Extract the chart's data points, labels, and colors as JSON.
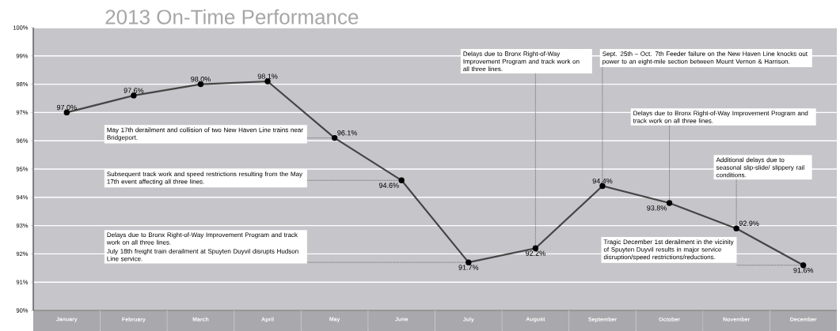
{
  "chart_data": {
    "type": "line",
    "title": "2013 On-Time Performance",
    "categories": [
      "January",
      "February",
      "March",
      "April",
      "May",
      "June",
      "July",
      "August",
      "September",
      "October",
      "November",
      "December"
    ],
    "values": [
      97.0,
      97.6,
      98.0,
      98.1,
      96.1,
      94.6,
      91.7,
      92.2,
      94.4,
      93.8,
      92.9,
      91.6
    ],
    "value_labels": [
      "97.0%",
      "97.6%",
      "98.0%",
      "98.1%",
      "96.1%",
      "94.6%",
      "91.7%",
      "92.2%",
      "94.4%",
      "93.8%",
      "92.9%",
      "91.6%"
    ],
    "color": "#454545",
    "marker": "circle",
    "grid": "y",
    "ylim": [
      90,
      100
    ],
    "yticks": [
      {
        "value": 90,
        "label": "90%"
      },
      {
        "value": 91,
        "label": "91%"
      },
      {
        "value": 92,
        "label": "92%"
      },
      {
        "value": 93,
        "label": "93%"
      },
      {
        "value": 94,
        "label": "94%"
      },
      {
        "value": 95,
        "label": "95%"
      },
      {
        "value": 96,
        "label": "96%"
      },
      {
        "value": 97,
        "label": "97%"
      },
      {
        "value": 98,
        "label": "98%"
      },
      {
        "value": 99,
        "label": "99%"
      },
      {
        "value": 100,
        "label": "100%"
      }
    ],
    "annotations": [
      "May 17th derailment and collision of two New Haven Line trains near Bridgeport.",
      {
        "text": "Subsequent track work and speed restrictions resulting from the May 17th event affecting all three lines.",
        "x": "June",
        "y": 94.6
      },
      "Delays due to Bronx Right-of-Way Improvement Program and track work on all three lines.",
      "July 18th freight train derailment at Spuyten Duyvil disrupts Hudson Line service.",
      {
        "text": "Delays due to Bronx Right-of-Way Improvement Program and track work on all three lines.",
        "x": "August",
        "y": 92.2
      },
      {
        "text": "Sept. 25th – Oct. 7th Feeder failure on the New Haven Line knocks out power to an eight-mile section between Mount Vernon & Harrison.",
        "x": "September",
        "y": 94.4
      },
      {
        "text": "Delays due to Bronx Right-of-Way Improvement Program and track work on all three lines.",
        "x": "October",
        "y": 93.8
      },
      {
        "text": "Additional delays due to seasonal slip-slide/ slippery rail conditions.",
        "x": "November",
        "y": 92.9
      },
      {
        "text": "Tragic December 1st derailment in the vicinity of Spuyten Duyvil results in major service disruption/speed restrictions/reductions.",
        "x": "December",
        "y": 91.6
      }
    ]
  }
}
